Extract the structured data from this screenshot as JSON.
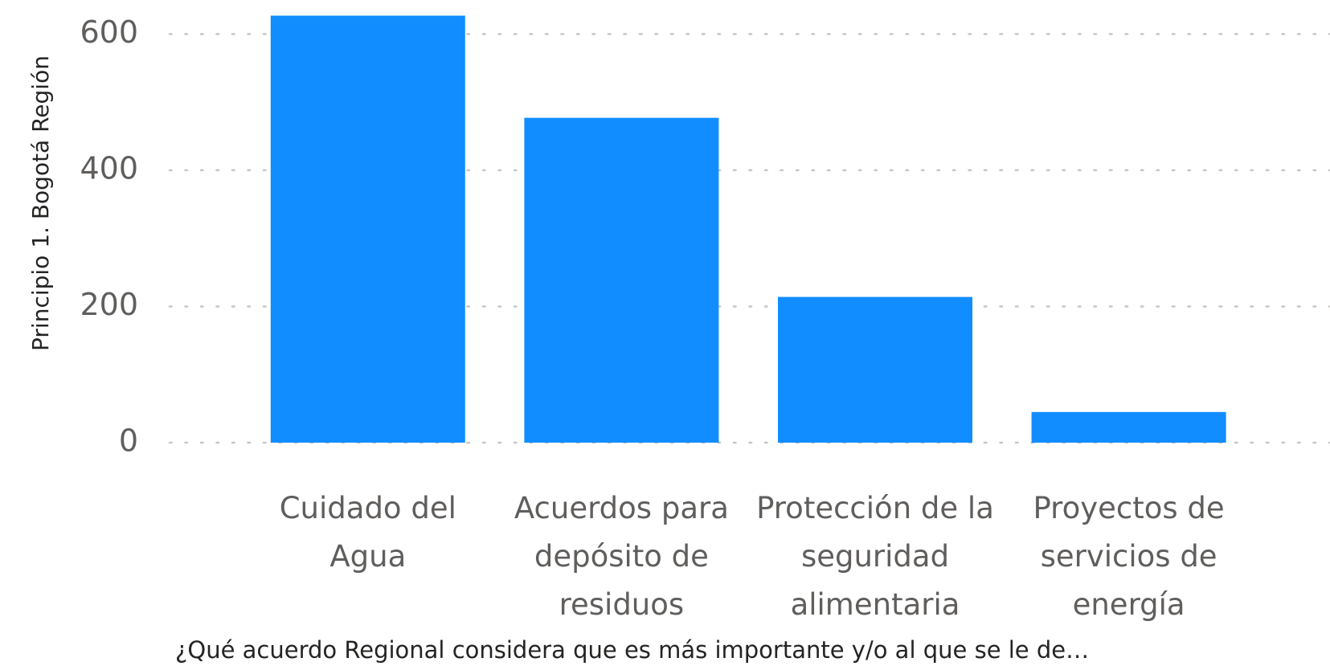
{
  "chart_data": {
    "type": "bar",
    "y_axis_label": "Principio 1. Bogotá Región",
    "x_axis_label": "¿Qué acuerdo Regional considera que es más importante y/o al que se le de…",
    "categories": [
      "Cuidado del Agua",
      "Acuerdos para depósito de residuos",
      "Protección de la seguridad alimentaria",
      "Proyectos de servicios de energía"
    ],
    "values": [
      627,
      477,
      214,
      45
    ],
    "color": "#118dff",
    "ylim": [
      0,
      650
    ],
    "yticks": [
      0,
      200,
      400,
      600
    ],
    "grid": true
  }
}
